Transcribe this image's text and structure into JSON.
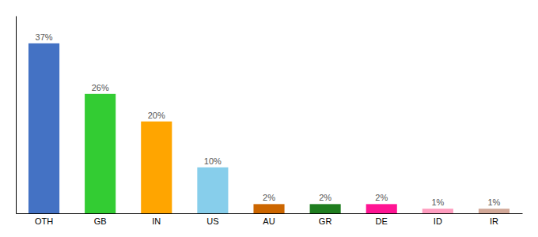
{
  "chart_data": {
    "type": "bar",
    "categories": [
      "OTH",
      "GB",
      "IN",
      "US",
      "AU",
      "GR",
      "DE",
      "ID",
      "IR"
    ],
    "values": [
      37,
      26,
      20,
      10,
      2,
      2,
      2,
      1,
      1
    ],
    "value_labels": [
      "37%",
      "26%",
      "20%",
      "10%",
      "2%",
      "2%",
      "2%",
      "1%",
      "1%"
    ],
    "colors": [
      "#4472C4",
      "#33CC33",
      "#FFA500",
      "#87CEEB",
      "#CC6600",
      "#1F7D1F",
      "#FF1493",
      "#FF9EC0",
      "#D2A898"
    ],
    "ylim": [
      0,
      43
    ],
    "data_labels": true,
    "tick_labels": "x",
    "grid": false
  }
}
